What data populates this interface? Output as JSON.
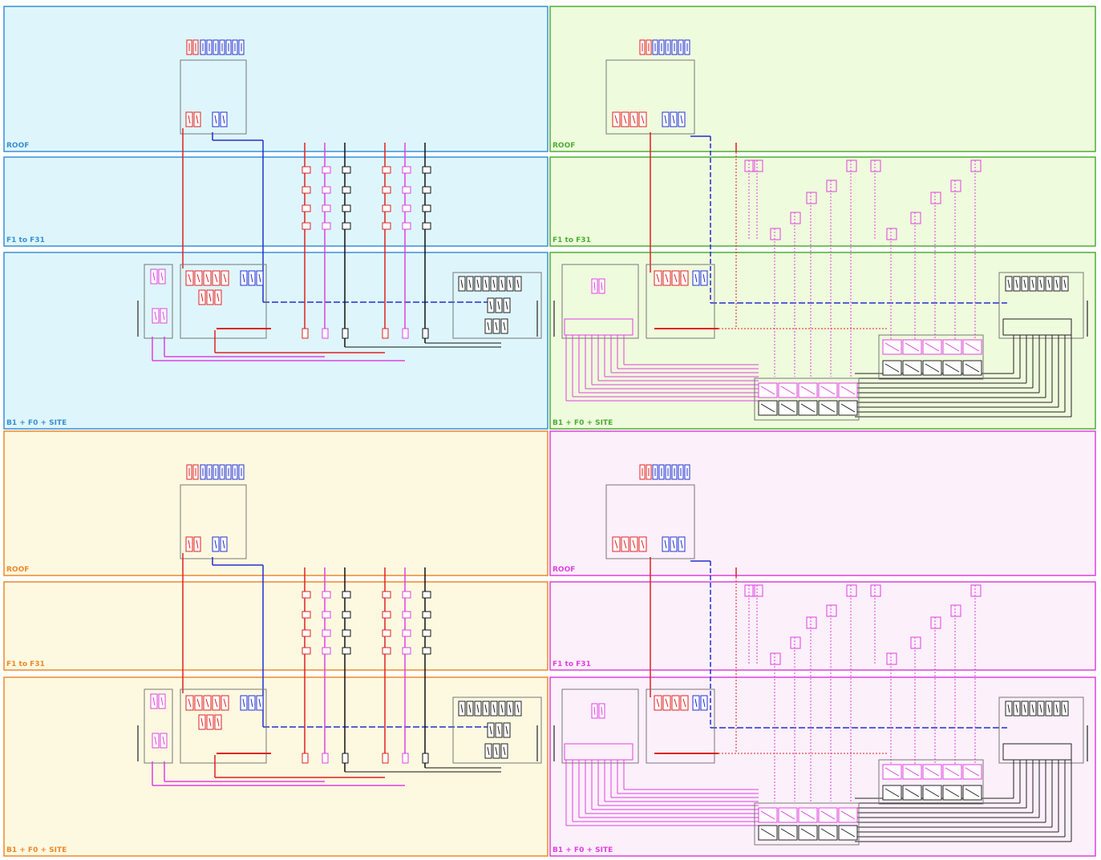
{
  "quadrants": [
    {
      "zones": [
        {
          "label": "ROOF"
        },
        {
          "label": "F1 to F31"
        },
        {
          "label": "B1 + F0 + SITE"
        }
      ]
    },
    {
      "zones": [
        {
          "label": "ROOF"
        },
        {
          "label": "F1 to F31"
        },
        {
          "label": "B1 + F0 + SITE"
        }
      ]
    },
    {
      "zones": [
        {
          "label": "ROOF"
        },
        {
          "label": "F1 to F31"
        },
        {
          "label": "B1 + F0 + SITE"
        }
      ]
    },
    {
      "zones": [
        {
          "label": "ROOF"
        },
        {
          "label": "F1 to F31"
        },
        {
          "label": "B1 + F0 + SITE"
        }
      ]
    }
  ]
}
